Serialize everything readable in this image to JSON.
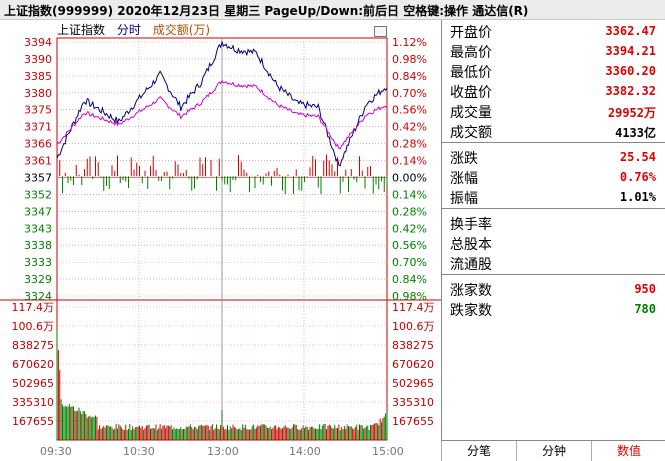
{
  "window": {
    "title": "上证指数(999999)  2020年12月23日 星期三 PageUp/Down:前后日 空格键:操作 通达信(R)"
  },
  "chart_tabs": {
    "name": "上证指数",
    "mode": "分时",
    "volume": "成交额(万)"
  },
  "price_axis": {
    "left": [
      "3394",
      "3390",
      "3385",
      "3380",
      "3375",
      "3371",
      "3366",
      "3361",
      "3357",
      "3352",
      "3347",
      "3343",
      "3338",
      "3333",
      "3329",
      "3324"
    ],
    "right": [
      "1.12%",
      "0.98%",
      "0.84%",
      "0.70%",
      "0.56%",
      "0.42%",
      "0.28%",
      "0.14%",
      "0.00%",
      "0.14%",
      "0.28%",
      "0.42%",
      "0.56%",
      "0.70%",
      "0.84%",
      "0.98%"
    ]
  },
  "volume_axis": {
    "left": [
      "117.4万",
      "100.6万",
      "838275",
      "670620",
      "502965",
      "335310",
      "167655"
    ],
    "right": [
      "117.4万",
      "100.6万",
      "838275",
      "670620",
      "502965",
      "335310",
      "167655"
    ]
  },
  "time_axis": [
    "09:30",
    "10:30",
    "13:00",
    "14:00",
    "15:00"
  ],
  "chart_data": {
    "type": "line",
    "x": [
      "09:30",
      "10:30",
      "13:00",
      "14:00",
      "15:00"
    ],
    "ylim": [
      3324,
      3394
    ],
    "prev_close": 3357,
    "series": [],
    "volume_ylim": [
      0,
      1174000
    ]
  },
  "quote_panel": {
    "rows": [
      {
        "label": "开盘价",
        "value": "3362.47",
        "color": "up"
      },
      {
        "label": "最高价",
        "value": "3394.21",
        "color": "up"
      },
      {
        "label": "最低价",
        "value": "3360.20",
        "color": "up"
      },
      {
        "label": "收盘价",
        "value": "3382.32",
        "color": "up"
      },
      {
        "label": "成交量",
        "value": "29952万",
        "color": "up"
      },
      {
        "label": "成交额",
        "value": "4133亿",
        "color": "black"
      },
      {
        "label": "涨跌",
        "value": "25.54",
        "color": "up"
      },
      {
        "label": "涨幅",
        "value": "0.76%",
        "color": "up"
      },
      {
        "label": "振幅",
        "value": "1.01%",
        "color": "black"
      },
      {
        "label": "换手率",
        "value": "",
        "color": "black"
      },
      {
        "label": "总股本",
        "value": "",
        "color": "black"
      },
      {
        "label": "流通股",
        "value": "",
        "color": "black"
      },
      {
        "label": "涨家数",
        "value": "950",
        "color": "up"
      },
      {
        "label": "跌家数",
        "value": "780",
        "color": "dn"
      }
    ]
  },
  "bottom_tabs": [
    "分笔",
    "分钟",
    "数值"
  ]
}
